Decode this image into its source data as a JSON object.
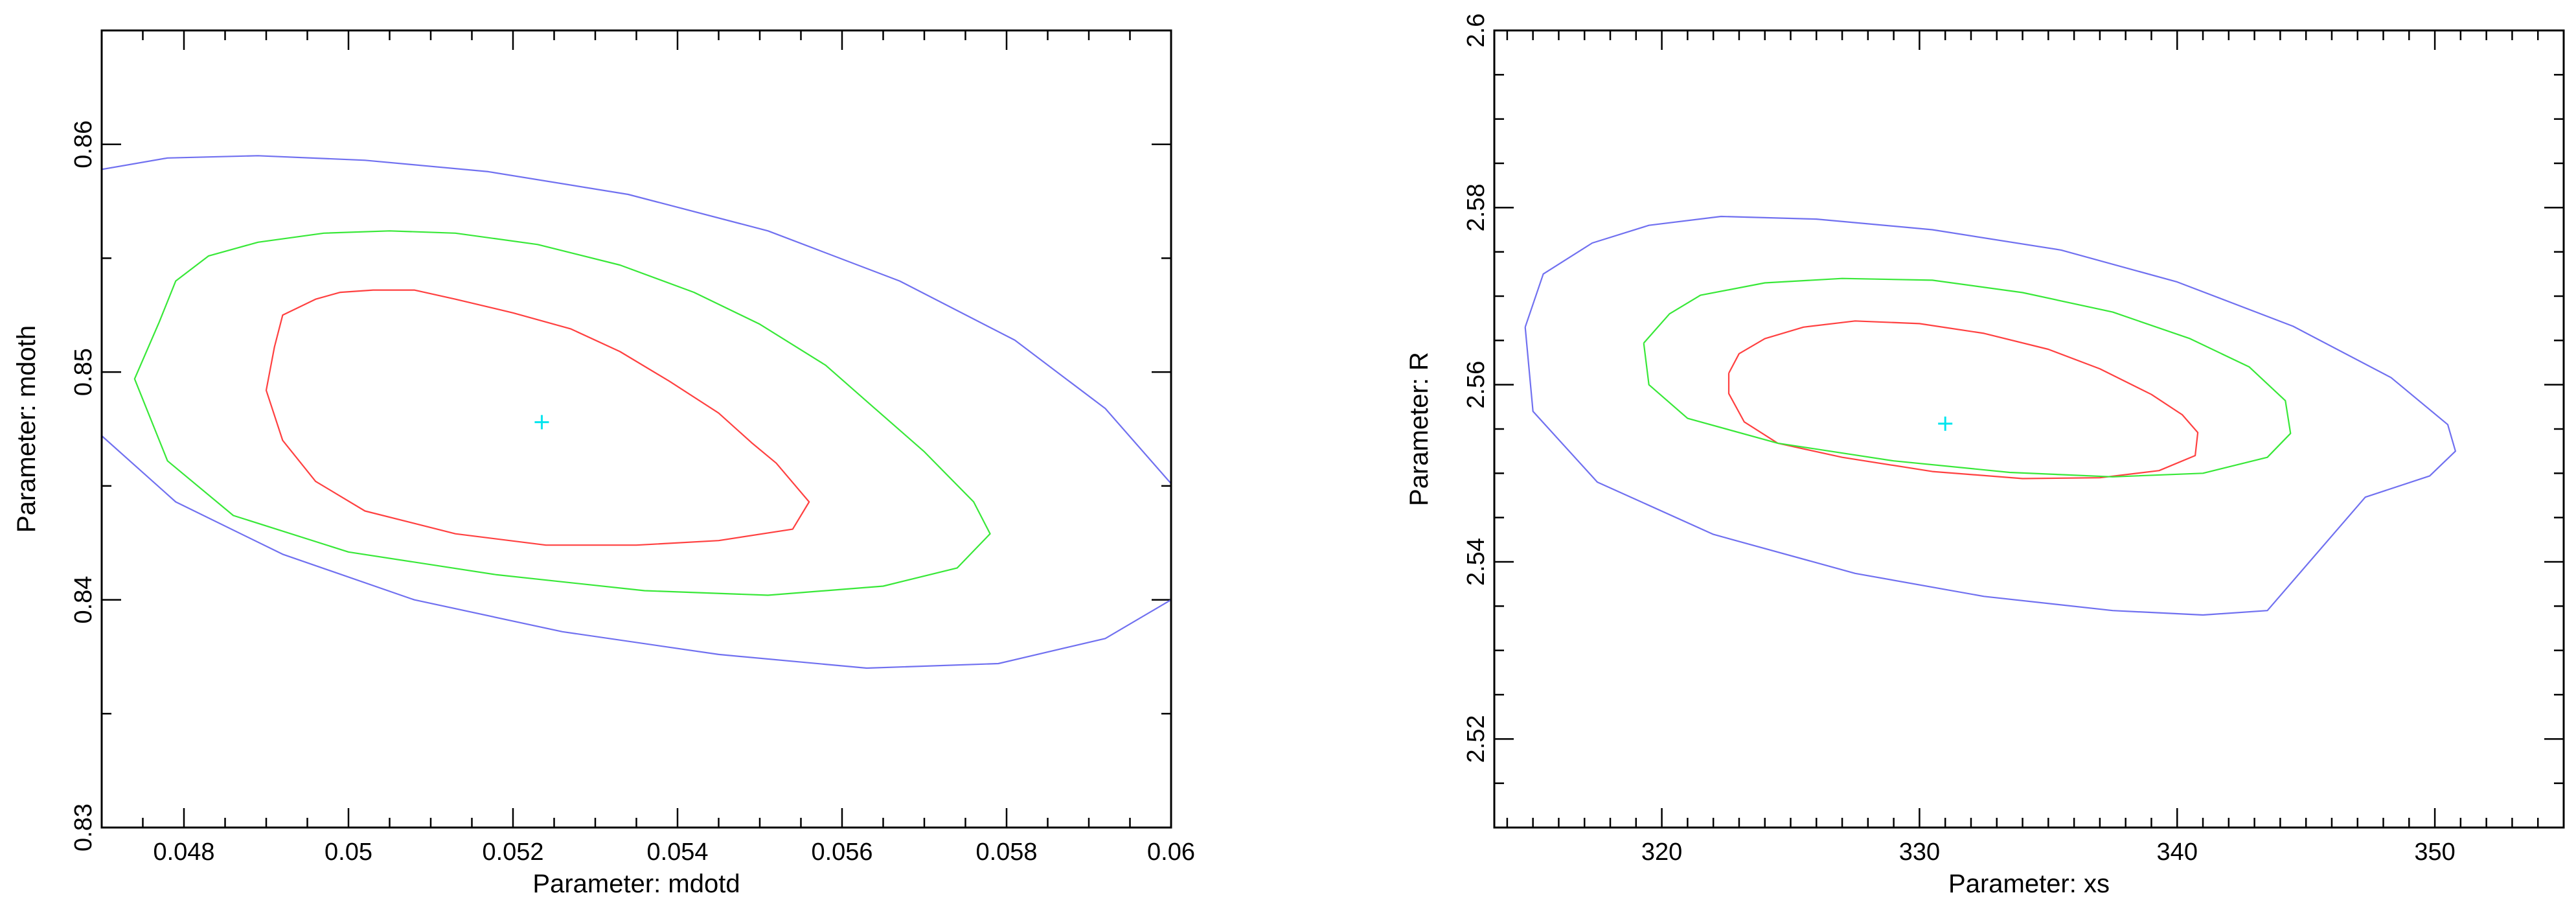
{
  "chart_data": [
    {
      "type": "contour",
      "xlabel": "Parameter: mdotd",
      "ylabel": "Parameter: mdoth",
      "xlim": [
        0.047,
        0.06
      ],
      "ylim": [
        0.83,
        0.865
      ],
      "x_ticks": [
        0.048,
        0.05,
        0.052,
        0.054,
        0.056,
        0.058,
        0.06
      ],
      "x_tick_labels": [
        "0.048",
        "0.05",
        "0.052",
        "0.054",
        "0.056",
        "0.058",
        "0.06"
      ],
      "x_minor_step": 0.0005,
      "y_ticks": [
        0.83,
        0.84,
        0.85,
        0.86
      ],
      "y_tick_labels": [
        "0.83",
        "0.84",
        "0.85",
        "0.86"
      ],
      "y_minor_step": 0.005,
      "best_fit": {
        "x": 0.05235,
        "y": 0.8478,
        "color": "#00e5ee"
      },
      "series": [
        {
          "color": "#ff4040",
          "points": [
            [
              0.0491,
              0.8511
            ],
            [
              0.0492,
              0.8525
            ],
            [
              0.0496,
              0.8532
            ],
            [
              0.0499,
              0.8535
            ],
            [
              0.0503,
              0.8536
            ],
            [
              0.0508,
              0.8536
            ],
            [
              0.0513,
              0.8532
            ],
            [
              0.052,
              0.8526
            ],
            [
              0.0527,
              0.8519
            ],
            [
              0.0533,
              0.8509
            ],
            [
              0.0539,
              0.8496
            ],
            [
              0.0545,
              0.8482
            ],
            [
              0.0549,
              0.8469
            ],
            [
              0.0552,
              0.846
            ],
            [
              0.0556,
              0.8443
            ],
            [
              0.0554,
              0.8431
            ],
            [
              0.0545,
              0.8426
            ],
            [
              0.0535,
              0.8424
            ],
            [
              0.0524,
              0.8424
            ],
            [
              0.0513,
              0.8429
            ],
            [
              0.0502,
              0.8439
            ],
            [
              0.0496,
              0.8452
            ],
            [
              0.0492,
              0.847
            ],
            [
              0.049,
              0.8492
            ],
            [
              0.0491,
              0.8511
            ]
          ]
        },
        {
          "color": "#38e838",
          "points": [
            [
              0.0477,
              0.8522
            ],
            [
              0.0479,
              0.854
            ],
            [
              0.0483,
              0.8551
            ],
            [
              0.0489,
              0.8557
            ],
            [
              0.0497,
              0.8561
            ],
            [
              0.0505,
              0.8562
            ],
            [
              0.0513,
              0.8561
            ],
            [
              0.0523,
              0.8556
            ],
            [
              0.0533,
              0.8547
            ],
            [
              0.0542,
              0.8535
            ],
            [
              0.055,
              0.8521
            ],
            [
              0.0558,
              0.8503
            ],
            [
              0.0564,
              0.8484
            ],
            [
              0.057,
              0.8465
            ],
            [
              0.0576,
              0.8443
            ],
            [
              0.0578,
              0.8429
            ],
            [
              0.0574,
              0.8414
            ],
            [
              0.0565,
              0.8406
            ],
            [
              0.0551,
              0.8402
            ],
            [
              0.0536,
              0.8404
            ],
            [
              0.0518,
              0.8411
            ],
            [
              0.05,
              0.8421
            ],
            [
              0.0486,
              0.8437
            ],
            [
              0.0478,
              0.8461
            ],
            [
              0.0474,
              0.8497
            ],
            [
              0.0477,
              0.8522
            ]
          ]
        },
        {
          "color": "#7070f0",
          "points": [
            [
              0.047,
              0.8589
            ],
            [
              0.0478,
              0.8594
            ],
            [
              0.0489,
              0.8595
            ],
            [
              0.0502,
              0.8593
            ],
            [
              0.0517,
              0.8588
            ],
            [
              0.0534,
              0.8578
            ],
            [
              0.0551,
              0.8562
            ],
            [
              0.0567,
              0.854
            ],
            [
              0.0581,
              0.8514
            ],
            [
              0.0592,
              0.8484
            ],
            [
              0.06,
              0.8451
            ]
          ]
        },
        {
          "color": "#7070f0",
          "points": [
            [
              0.047,
              0.8472
            ],
            [
              0.0479,
              0.8443
            ],
            [
              0.0492,
              0.842
            ],
            [
              0.0508,
              0.84
            ],
            [
              0.0526,
              0.8386
            ],
            [
              0.0545,
              0.8376
            ],
            [
              0.0563,
              0.837
            ],
            [
              0.0579,
              0.8372
            ],
            [
              0.0592,
              0.8383
            ],
            [
              0.06,
              0.84
            ]
          ]
        }
      ]
    },
    {
      "type": "contour",
      "xlabel": "Parameter: xs",
      "ylabel": "Parameter: R",
      "xlim": [
        313.5,
        355
      ],
      "ylim": [
        2.51,
        2.6
      ],
      "x_ticks": [
        320,
        330,
        340,
        350
      ],
      "x_tick_labels": [
        "320",
        "330",
        "340",
        "350"
      ],
      "x_minor_step": 1,
      "y_ticks": [
        2.52,
        2.54,
        2.56,
        2.58,
        2.6
      ],
      "y_tick_labels": [
        "2.52",
        "2.54",
        "2.56",
        "2.58",
        "2.6"
      ],
      "y_minor_step": 0.005,
      "best_fit": {
        "x": 331.0,
        "y": 2.5556,
        "color": "#00e5ee"
      },
      "series": [
        {
          "color": "#ff4040",
          "points": [
            [
              322.6,
              2.5613
            ],
            [
              323.0,
              2.5635
            ],
            [
              324.0,
              2.5652
            ],
            [
              325.5,
              2.5665
            ],
            [
              327.5,
              2.5672
            ],
            [
              330.0,
              2.5669
            ],
            [
              332.5,
              2.5658
            ],
            [
              335.0,
              2.564
            ],
            [
              337.0,
              2.5618
            ],
            [
              339.0,
              2.5589
            ],
            [
              340.2,
              2.5566
            ],
            [
              340.8,
              2.5546
            ],
            [
              340.7,
              2.552
            ],
            [
              339.3,
              2.5503
            ],
            [
              337.0,
              2.5495
            ],
            [
              334.0,
              2.5494
            ],
            [
              330.5,
              2.5502
            ],
            [
              327.0,
              2.5518
            ],
            [
              324.5,
              2.5534
            ],
            [
              323.2,
              2.5558
            ],
            [
              322.6,
              2.559
            ],
            [
              322.6,
              2.5613
            ]
          ]
        },
        {
          "color": "#38e838",
          "points": [
            [
              319.3,
              2.5647
            ],
            [
              320.3,
              2.568
            ],
            [
              321.5,
              2.5701
            ],
            [
              324.0,
              2.5715
            ],
            [
              327.0,
              2.572
            ],
            [
              330.5,
              2.5718
            ],
            [
              334.0,
              2.5704
            ],
            [
              337.5,
              2.5682
            ],
            [
              340.5,
              2.5652
            ],
            [
              342.8,
              2.562
            ],
            [
              344.2,
              2.5582
            ],
            [
              344.4,
              2.5545
            ],
            [
              343.5,
              2.5518
            ],
            [
              341.0,
              2.55
            ],
            [
              337.5,
              2.5496
            ],
            [
              333.5,
              2.5501
            ],
            [
              329.0,
              2.5514
            ],
            [
              324.5,
              2.5534
            ],
            [
              321.0,
              2.5562
            ],
            [
              319.5,
              2.56
            ],
            [
              319.3,
              2.5647
            ]
          ]
        },
        {
          "color": "#7070f0",
          "points": [
            [
              314.7,
              2.5665
            ],
            [
              315.4,
              2.5725
            ],
            [
              317.3,
              2.576
            ],
            [
              319.5,
              2.578
            ],
            [
              322.3,
              2.579
            ],
            [
              326.0,
              2.5787
            ],
            [
              330.5,
              2.5775
            ],
            [
              335.5,
              2.5752
            ],
            [
              340.0,
              2.5716
            ],
            [
              344.5,
              2.5666
            ],
            [
              348.3,
              2.5608
            ],
            [
              350.5,
              2.5555
            ],
            [
              350.8,
              2.5525
            ],
            [
              349.8,
              2.5497
            ],
            [
              347.3,
              2.5473
            ],
            [
              343.5,
              2.5345
            ],
            [
              341.0,
              2.534
            ],
            [
              337.5,
              2.5345
            ],
            [
              332.5,
              2.5361
            ],
            [
              327.5,
              2.5387
            ],
            [
              322.0,
              2.5431
            ],
            [
              317.5,
              2.549
            ],
            [
              315.0,
              2.557
            ],
            [
              314.7,
              2.5665
            ]
          ]
        }
      ]
    }
  ]
}
